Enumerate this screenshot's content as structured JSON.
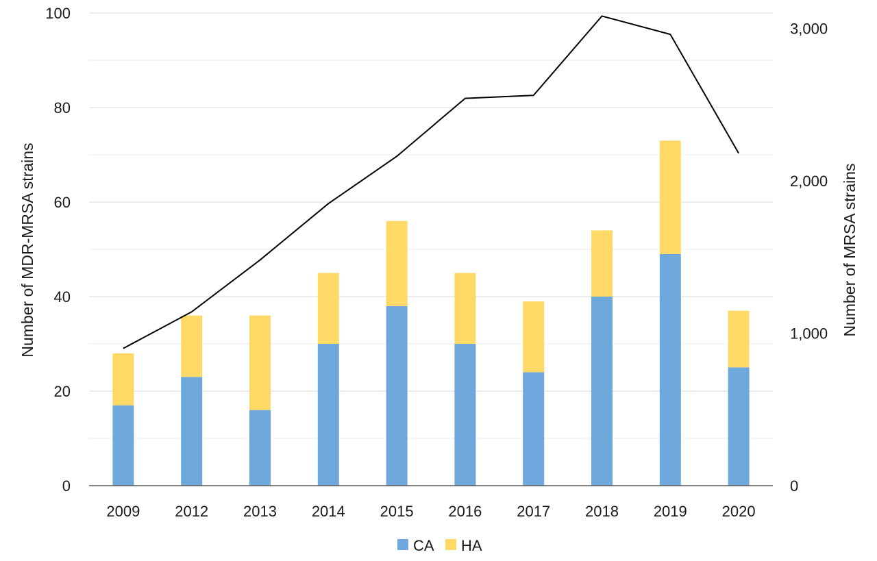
{
  "chart_data": {
    "type": "bar",
    "stacked": true,
    "categories": [
      "2009",
      "2012",
      "2013",
      "2014",
      "2015",
      "2016",
      "2017",
      "2018",
      "2019",
      "2020"
    ],
    "series": [
      {
        "name": "CA",
        "axis": "left",
        "kind": "bar",
        "color": "#6FA8DC",
        "values": [
          17,
          23,
          16,
          30,
          38,
          30,
          24,
          40,
          49,
          25
        ]
      },
      {
        "name": "HA",
        "axis": "left",
        "kind": "bar",
        "color": "#FFD966",
        "values": [
          11,
          13,
          20,
          15,
          18,
          15,
          15,
          14,
          24,
          12
        ]
      },
      {
        "name": "",
        "axis": "right",
        "kind": "line",
        "color": "#000000",
        "values": [
          900,
          1140,
          1480,
          1850,
          2160,
          2540,
          2560,
          3080,
          2960,
          2180
        ]
      }
    ],
    "title": "",
    "xlabel": "",
    "ylabel": "Number of MDR-MRSA strains",
    "y2label": "Number of MRSA strains",
    "ylim": [
      0,
      100
    ],
    "y2lim": [
      0,
      3100
    ],
    "yticks": [
      "0",
      "20",
      "40",
      "60",
      "80",
      "100"
    ],
    "y2ticks": [
      "0",
      "1,000",
      "2,000",
      "3,000"
    ],
    "y2tick_values": [
      0,
      1000,
      2000,
      3000
    ],
    "grid": true,
    "legend_position": "bottom"
  }
}
